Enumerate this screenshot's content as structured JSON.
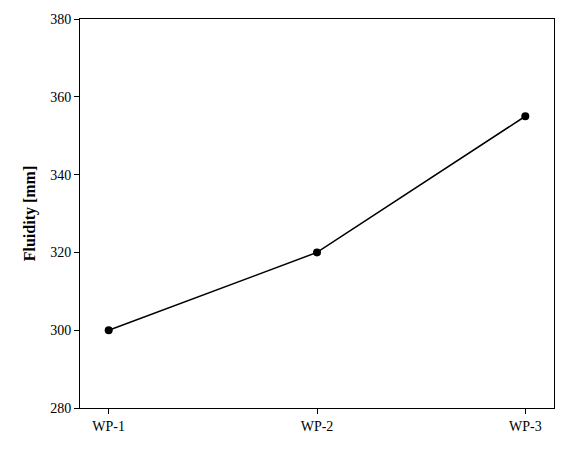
{
  "chart_data": {
    "type": "line",
    "categories": [
      "WP-1",
      "WP-2",
      "WP-3"
    ],
    "values": [
      300,
      320,
      355
    ],
    "color": "#000000",
    "ylabel": "Fluidity [mm]",
    "ylim": [
      280,
      380
    ],
    "yticks": [
      280,
      300,
      320,
      340,
      360,
      380
    ],
    "grid": false,
    "marker": "circle"
  }
}
